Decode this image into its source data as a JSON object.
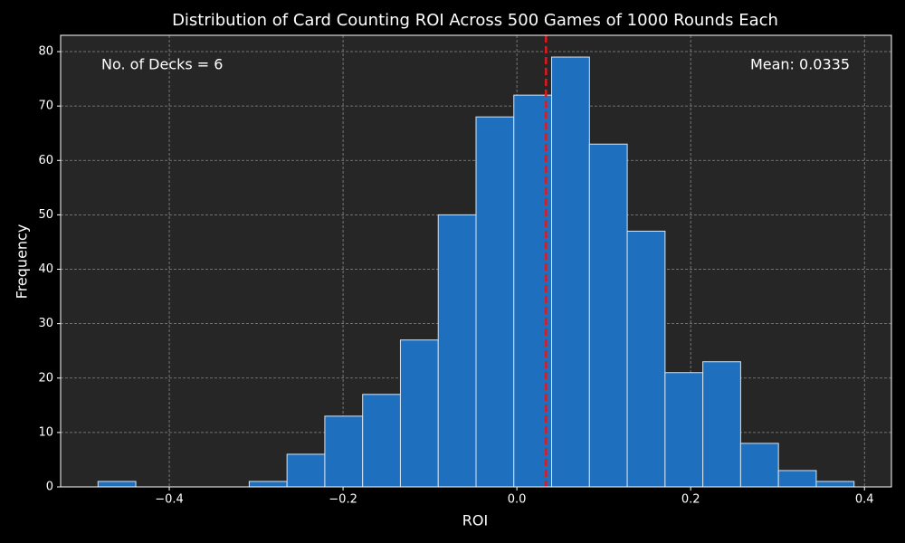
{
  "chart_data": {
    "type": "histogram",
    "title": "Distribution of Card Counting ROI Across 500 Games of 1000 Rounds Each",
    "x_label": "ROI",
    "y_label": "Frequency",
    "bins": [
      -0.482,
      -0.4385,
      -0.395,
      -0.3515,
      -0.308,
      -0.2645,
      -0.221,
      -0.1775,
      -0.134,
      -0.0905,
      -0.047,
      -0.0035,
      0.04,
      0.0835,
      0.127,
      0.1705,
      0.214,
      0.2575,
      0.301,
      0.3445,
      0.388
    ],
    "values": [
      1,
      0,
      0,
      0,
      1,
      6,
      13,
      17,
      27,
      50,
      68,
      72,
      79,
      63,
      47,
      21,
      23,
      8,
      3,
      1
    ],
    "color": "#1f6fbf",
    "edge_color": "#d8e4f0",
    "mean": 0.0335,
    "mean_color": "#e0191e",
    "annotations": [
      "No. of Decks = 6",
      "Mean: 0.0335"
    ],
    "xlim": [
      -0.525,
      0.431
    ],
    "ylim": [
      0,
      83
    ],
    "xticks": [
      {
        "value": -0.4,
        "label": "−0.4"
      },
      {
        "value": -0.2,
        "label": "−0.2"
      },
      {
        "value": 0,
        "label": "0.0"
      },
      {
        "value": 0.2,
        "label": "0.2"
      },
      {
        "value": 0.4,
        "label": "0.4"
      }
    ],
    "yticks": [
      0,
      10,
      20,
      30,
      40,
      50,
      60,
      70,
      80
    ],
    "grid": true
  }
}
